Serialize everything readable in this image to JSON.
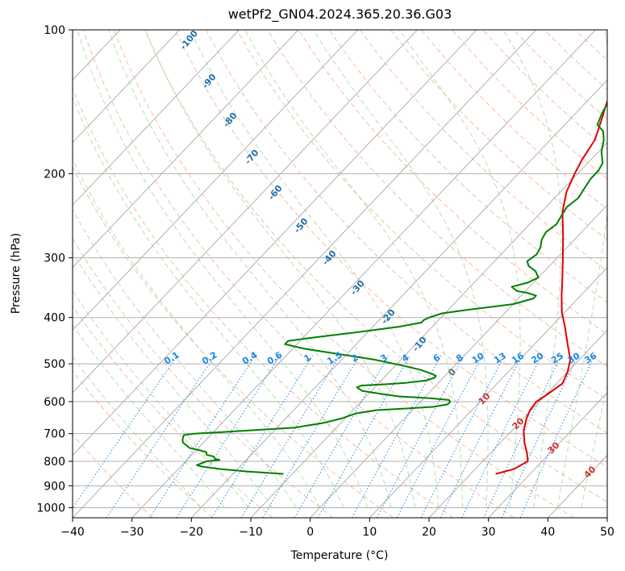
{
  "chart_data": {
    "type": "line",
    "title": "wetPf2_GN04.2024.365.20.36.G03",
    "xlabel": "Temperature (°C)",
    "ylabel": "Pressure (hPa)",
    "xlim": [
      -40,
      50
    ],
    "ylim": [
      1050,
      100
    ],
    "y_scale": "log",
    "grid": true,
    "x_ticks": [
      -40,
      -30,
      -20,
      -10,
      0,
      10,
      20,
      30,
      40,
      50
    ],
    "y_ticks": [
      100,
      200,
      300,
      400,
      500,
      600,
      700,
      800,
      900,
      1000
    ],
    "colors": {
      "temperature": "#e00000",
      "dewpoint": "#008000",
      "isotherm": "#999999",
      "dry_adiabat": "#f4a582",
      "moist_adiabat": "#a6d5a0",
      "mixing_ratio": "#1e88e5"
    },
    "series": [
      {
        "color": "#e00000",
        "points": [
          [
            24.2,
            850
          ],
          [
            26.5,
            830
          ],
          [
            27.6,
            800
          ],
          [
            26.2,
            770
          ],
          [
            24.0,
            730
          ],
          [
            22.0,
            690
          ],
          [
            20.5,
            650
          ],
          [
            19.8,
            625
          ],
          [
            19.5,
            600
          ],
          [
            20.0,
            585
          ],
          [
            20.6,
            565
          ],
          [
            21.0,
            550
          ],
          [
            20.0,
            520
          ],
          [
            18.5,
            490
          ],
          [
            16.0,
            460
          ],
          [
            12.5,
            420
          ],
          [
            9.5,
            390
          ],
          [
            6.8,
            360
          ],
          [
            5.0,
            340
          ],
          [
            1.5,
            305
          ],
          [
            -2.5,
            270
          ],
          [
            -6.5,
            240
          ],
          [
            -9.0,
            218
          ],
          [
            -10.5,
            200
          ],
          [
            -11.5,
            187
          ],
          [
            -12.5,
            170
          ],
          [
            -14.5,
            155
          ],
          [
            -16.0,
            145
          ],
          [
            -17.5,
            135
          ],
          [
            -19.0,
            125
          ],
          [
            -20.5,
            115
          ],
          [
            -21.0,
            108
          ],
          [
            -20.5,
            104
          ],
          [
            -19.5,
            100
          ]
        ]
      },
      {
        "color": "#008000",
        "points": [
          [
            -11.5,
            850
          ],
          [
            -18.0,
            840
          ],
          [
            -23.0,
            830
          ],
          [
            -26.5,
            820
          ],
          [
            -27.5,
            815
          ],
          [
            -26.5,
            800
          ],
          [
            -24.5,
            795
          ],
          [
            -25.5,
            790
          ],
          [
            -26.0,
            782
          ],
          [
            -27.5,
            775
          ],
          [
            -28.0,
            765
          ],
          [
            -29.5,
            758
          ],
          [
            -31.5,
            750
          ],
          [
            -33.5,
            730
          ],
          [
            -34.0,
            720
          ],
          [
            -34.5,
            705
          ],
          [
            -33.0,
            700
          ],
          [
            -28.5,
            695
          ],
          [
            -17.0,
            680
          ],
          [
            -13.0,
            665
          ],
          [
            -10.5,
            650
          ],
          [
            -9.0,
            635
          ],
          [
            -6.0,
            625
          ],
          [
            -1.0,
            620
          ],
          [
            3.0,
            615
          ],
          [
            5.0,
            608
          ],
          [
            5.0,
            600
          ],
          [
            4.5,
            595
          ],
          [
            1.0,
            590
          ],
          [
            -4.5,
            585
          ],
          [
            -7.0,
            580
          ],
          [
            -11.5,
            570
          ],
          [
            -13.0,
            560
          ],
          [
            -12.5,
            555
          ],
          [
            -9.0,
            552
          ],
          [
            -5.5,
            548
          ],
          [
            -2.5,
            542
          ],
          [
            -1.5,
            535
          ],
          [
            -1.5,
            530
          ],
          [
            -2.5,
            525
          ],
          [
            -5.0,
            515
          ],
          [
            -8.5,
            505
          ],
          [
            -14.5,
            490
          ],
          [
            -22.5,
            475
          ],
          [
            -28.0,
            465
          ],
          [
            -32.0,
            455
          ],
          [
            -32.0,
            448
          ],
          [
            -28.0,
            440
          ],
          [
            -21.0,
            428
          ],
          [
            -15.5,
            418
          ],
          [
            -12.5,
            410
          ],
          [
            -12.5,
            405
          ],
          [
            -12.0,
            400
          ],
          [
            -10.5,
            392
          ],
          [
            -6.5,
            385
          ],
          [
            0.0,
            375
          ],
          [
            2.5,
            365
          ],
          [
            2.5,
            360
          ],
          [
            0.5,
            355
          ],
          [
            -1.5,
            352
          ],
          [
            -3.0,
            345
          ],
          [
            -1.0,
            338
          ],
          [
            0.0,
            330
          ],
          [
            -1.5,
            320
          ],
          [
            -3.5,
            312
          ],
          [
            -4.5,
            305
          ],
          [
            -4.0,
            295
          ],
          [
            -4.5,
            285
          ],
          [
            -5.5,
            275
          ],
          [
            -6.0,
            265
          ],
          [
            -5.5,
            255
          ],
          [
            -6.0,
            245
          ],
          [
            -6.5,
            235
          ],
          [
            -6.0,
            225
          ],
          [
            -6.5,
            215
          ],
          [
            -7.0,
            205
          ],
          [
            -7.0,
            197
          ],
          [
            -7.5,
            190
          ],
          [
            -9.5,
            180
          ],
          [
            -11.0,
            170
          ],
          [
            -12.5,
            163
          ],
          [
            -14.5,
            158
          ],
          [
            -15.5,
            150
          ],
          [
            -16.0,
            145
          ],
          [
            -16.0,
            140
          ],
          [
            -16.5,
            135
          ],
          [
            -17.5,
            130
          ],
          [
            -19.0,
            125
          ],
          [
            -20.0,
            120
          ],
          [
            -20.5,
            115
          ],
          [
            -20.5,
            110
          ],
          [
            -20.5,
            105
          ],
          [
            -19.5,
            100
          ]
        ]
      }
    ],
    "dry_adiabat_labels": [
      "-100",
      "-90",
      "-80",
      "-70",
      "-60",
      "-50",
      "-40",
      "-30",
      "-20",
      "-10"
    ],
    "moist_adiabat_labels": [
      "0",
      "10",
      "20",
      "30",
      "40"
    ],
    "mixing_ratio_labels": [
      "0.1",
      "0.2",
      "0.4",
      "0.6",
      "1",
      "1.5",
      "2",
      "3",
      "4",
      "6",
      "8",
      "10",
      "13",
      "16",
      "20",
      "25",
      "30",
      "36"
    ]
  }
}
